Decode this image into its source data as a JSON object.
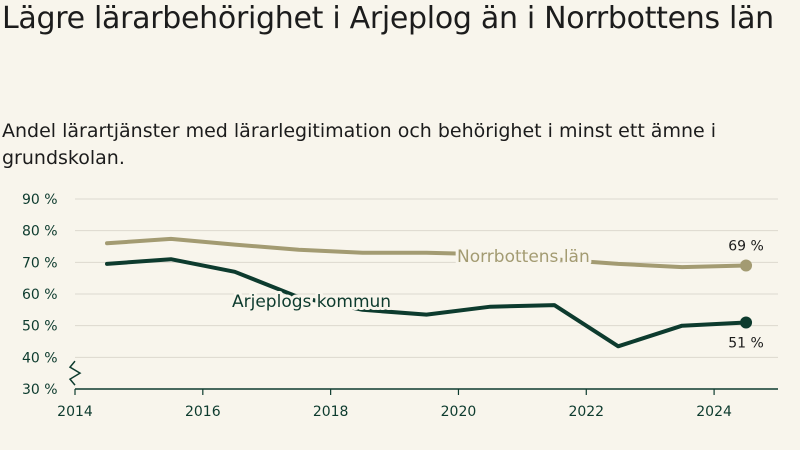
{
  "title": "Lägre lärarbehörighet i Arjeplog än i Norrbottens län",
  "subtitle": "Andel lärartjänster med lärarlegitimation och behörighet i minst ett ämne i grundskolan.",
  "colors": {
    "background": "#f8f5ec",
    "kommun": "#0d3b2e",
    "lan": "#a39b72",
    "grid": "#dcd9cf",
    "axis": "#0d3b2e"
  },
  "chart_data": {
    "type": "line",
    "title": "Lägre lärarbehörighet i Arjeplog än i Norrbottens län",
    "subtitle": "Andel lärartjänster med lärarlegitimation och behörighet i minst ett ämne i grundskolan.",
    "x": [
      2014.5,
      2015.5,
      2016.5,
      2017.5,
      2018.5,
      2019.5,
      2020.5,
      2021.5,
      2022.5,
      2023.5,
      2024.5
    ],
    "xticks": [
      2014,
      2016,
      2018,
      2020,
      2022,
      2024
    ],
    "xtick_labels": [
      "2014",
      "2016",
      "2018",
      "2020",
      "2022",
      "2024"
    ],
    "xlim": [
      2014,
      2025
    ],
    "ylim": [
      30,
      90
    ],
    "yticks": [
      30,
      40,
      50,
      60,
      70,
      80,
      90
    ],
    "ytick_labels": [
      "30 %",
      "40 %",
      "50 %",
      "60 %",
      "70 %",
      "80 %",
      "90 %"
    ],
    "y_axis_break": true,
    "grid": true,
    "legend": "inline labels",
    "series": [
      {
        "name": "Norrbottens län",
        "key": "lan",
        "values": [
          76,
          77.4,
          75.6,
          74,
          73,
          73,
          72.5,
          71,
          69.5,
          68.5,
          69
        ],
        "end_label": "69 %"
      },
      {
        "name": "Arjeplogs kommun",
        "key": "kommun",
        "values": [
          69.5,
          71,
          67,
          59,
          55,
          53.5,
          56,
          56.5,
          43.5,
          50,
          51
        ],
        "end_label": "51 %"
      }
    ]
  }
}
